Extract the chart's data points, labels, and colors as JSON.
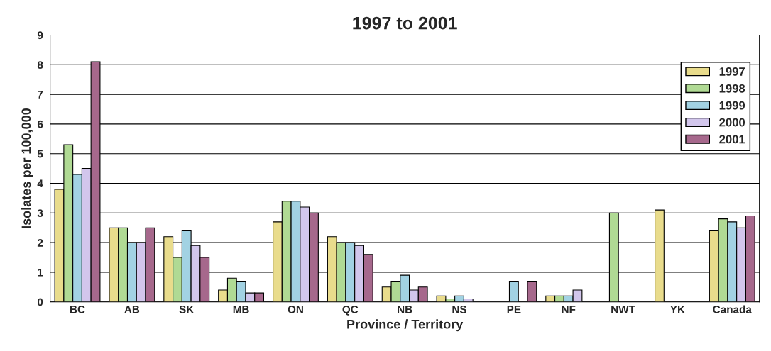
{
  "chart_data": {
    "type": "bar",
    "title": "1997 to 2001",
    "xlabel": "Province / Territory",
    "ylabel": "Isolates per 100,000",
    "categories": [
      "BC",
      "AB",
      "SK",
      "MB",
      "ON",
      "QC",
      "NB",
      "NS",
      "PE",
      "NF",
      "NWT",
      "YK",
      "Canada"
    ],
    "series": [
      {
        "name": "1997",
        "color": "#e9dc8c",
        "values": [
          3.8,
          2.5,
          2.2,
          0.4,
          2.7,
          2.2,
          0.5,
          0.2,
          null,
          0.2,
          null,
          3.1,
          2.4
        ]
      },
      {
        "name": "1998",
        "color": "#b0da94",
        "values": [
          5.3,
          2.5,
          1.5,
          0.8,
          3.4,
          2.0,
          0.7,
          0.1,
          null,
          0.2,
          3.0,
          null,
          2.8
        ]
      },
      {
        "name": "1999",
        "color": "#a2d2e3",
        "values": [
          4.3,
          2.0,
          2.4,
          0.7,
          3.4,
          2.0,
          0.9,
          0.2,
          0.7,
          0.2,
          null,
          null,
          2.7
        ]
      },
      {
        "name": "2000",
        "color": "#d2c6ec",
        "values": [
          4.5,
          2.0,
          1.9,
          0.3,
          3.2,
          1.9,
          0.4,
          0.1,
          null,
          0.4,
          null,
          null,
          2.5
        ]
      },
      {
        "name": "2001",
        "color": "#a6688c",
        "values": [
          8.1,
          2.5,
          1.5,
          0.3,
          3.0,
          1.6,
          0.5,
          null,
          0.7,
          null,
          null,
          null,
          2.9
        ]
      }
    ],
    "ylim": [
      0,
      9
    ],
    "yticks": [
      0,
      1,
      2,
      3,
      4,
      5,
      6,
      7,
      8,
      9
    ],
    "grid": "y",
    "legend": "top right"
  }
}
